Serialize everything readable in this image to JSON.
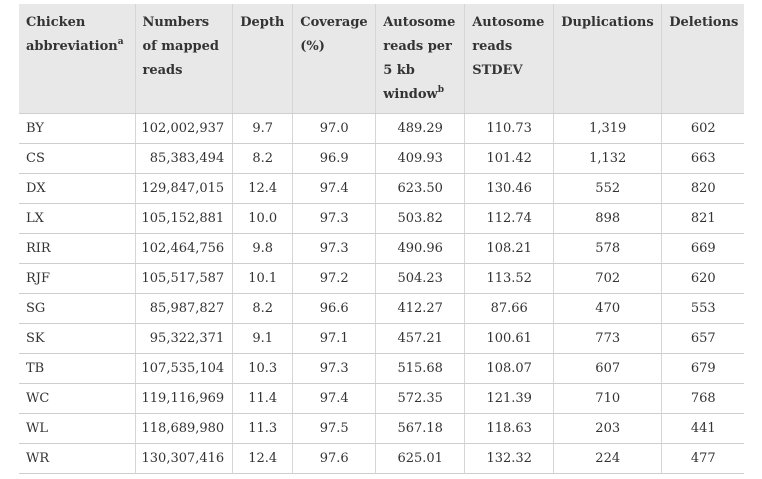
{
  "table": {
    "headers": [
      {
        "label": "Chicken abbreviation",
        "sup": "a"
      },
      {
        "label": "Numbers of mapped reads",
        "sup": ""
      },
      {
        "label": "Depth",
        "sup": ""
      },
      {
        "label": "Coverage (%)",
        "sup": ""
      },
      {
        "label": "Autosome reads per 5 kb window",
        "sup": "b"
      },
      {
        "label": "Autosome reads STDEV",
        "sup": ""
      },
      {
        "label": "Duplications",
        "sup": ""
      },
      {
        "label": "Deletions",
        "sup": ""
      }
    ],
    "rows": [
      [
        "BY",
        "102,002,937",
        "9.7",
        "97.0",
        "489.29",
        "110.73",
        "1,319",
        "602"
      ],
      [
        "CS",
        "85,383,494",
        "8.2",
        "96.9",
        "409.93",
        "101.42",
        "1,132",
        "663"
      ],
      [
        "DX",
        "129,847,015",
        "12.4",
        "97.4",
        "623.50",
        "130.46",
        "552",
        "820"
      ],
      [
        "LX",
        "105,152,881",
        "10.0",
        "97.3",
        "503.82",
        "112.74",
        "898",
        "821"
      ],
      [
        "RIR",
        "102,464,756",
        "9.8",
        "97.3",
        "490.96",
        "108.21",
        "578",
        "669"
      ],
      [
        "RJF",
        "105,517,587",
        "10.1",
        "97.2",
        "504.23",
        "113.52",
        "702",
        "620"
      ],
      [
        "SG",
        "85,987,827",
        "8.2",
        "96.6",
        "412.27",
        "87.66",
        "470",
        "553"
      ],
      [
        "SK",
        "95,322,371",
        "9.1",
        "97.1",
        "457.21",
        "100.61",
        "773",
        "657"
      ],
      [
        "TB",
        "107,535,104",
        "10.3",
        "97.3",
        "515.68",
        "108.07",
        "607",
        "679"
      ],
      [
        "WC",
        "119,116,969",
        "11.4",
        "97.4",
        "572.35",
        "121.39",
        "710",
        "768"
      ],
      [
        "WL",
        "118,689,980",
        "11.3",
        "97.5",
        "567.18",
        "118.63",
        "203",
        "441"
      ],
      [
        "WR",
        "130,307,416",
        "12.4",
        "97.6",
        "625.01",
        "132.32",
        "224",
        "477"
      ]
    ]
  }
}
